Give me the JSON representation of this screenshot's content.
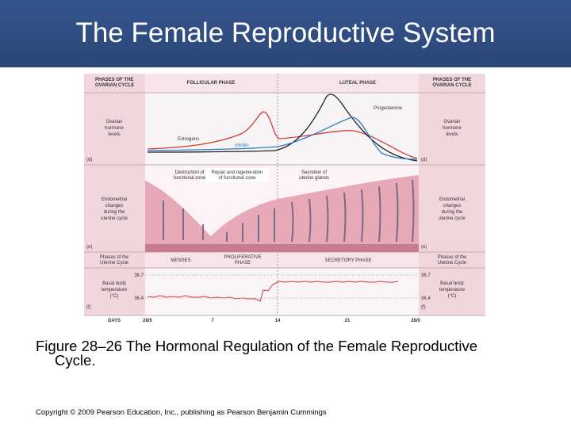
{
  "header": {
    "title": "The Female Reproductive System"
  },
  "figure": {
    "top": {
      "left": [
        "PHASES OF THE",
        "OVARIAN CYCLE"
      ],
      "follicular": "FOLLICULAR PHASE",
      "luteal": "LUTEAL PHASE",
      "right": [
        "PHASES OF THE",
        "OVARIAN CYCLE"
      ]
    },
    "hormones": {
      "left": [
        "Ovarian",
        "hormone",
        "levels"
      ],
      "right": [
        "Ovarian",
        "hormone",
        "levels"
      ],
      "panel": "(d)",
      "panel_right": "(d)",
      "progesterone": "Progesterone",
      "estrogens": "Estrogens",
      "inhibin": "Inhibin"
    },
    "endometrium": {
      "left": [
        "Endometrial",
        "changes",
        "during the",
        "uterine cycle"
      ],
      "right": [
        "Endometrial",
        "changes",
        "during the",
        "uterine cycle"
      ],
      "panel": "(e)",
      "panel_right": "(e)",
      "destruction": [
        "Destruction of",
        "functional zone"
      ],
      "repair": [
        "Repair and regeneration",
        "of functional zone"
      ],
      "secretion": [
        "Secretion of",
        "uterine glands"
      ]
    },
    "uterine": {
      "left": [
        "Phases of the",
        "Uterine Cycle"
      ],
      "right": [
        "Phases of the",
        "Uterine Cycle"
      ],
      "menses": "MENSES",
      "proliferative": [
        "PROLIFERATIVE",
        "PHASE"
      ],
      "secretory": "SECRETORY PHASE"
    },
    "temperature": {
      "left": [
        "Basal body",
        "temperature",
        "(°C)"
      ],
      "right": [
        "Basal body",
        "temperature",
        "(°C)"
      ],
      "panel": "(f)",
      "panel_right": "(f)",
      "left_ticks": [
        "36.7",
        "36.4"
      ],
      "right_ticks": [
        "36.7",
        "36.4"
      ]
    },
    "days": {
      "label": "DAYS",
      "ticks": [
        "28/0",
        "7",
        "14",
        "21",
        "28/0"
      ]
    }
  },
  "caption": {
    "line1": "Figure 28–26 The Hormonal Regulation of the Female Reproductive",
    "line2": "Cycle."
  },
  "footer": {
    "copyright": "Copyright © 2009 Pearson Education, Inc., publishing as Pearson Benjamin Cummings"
  }
}
